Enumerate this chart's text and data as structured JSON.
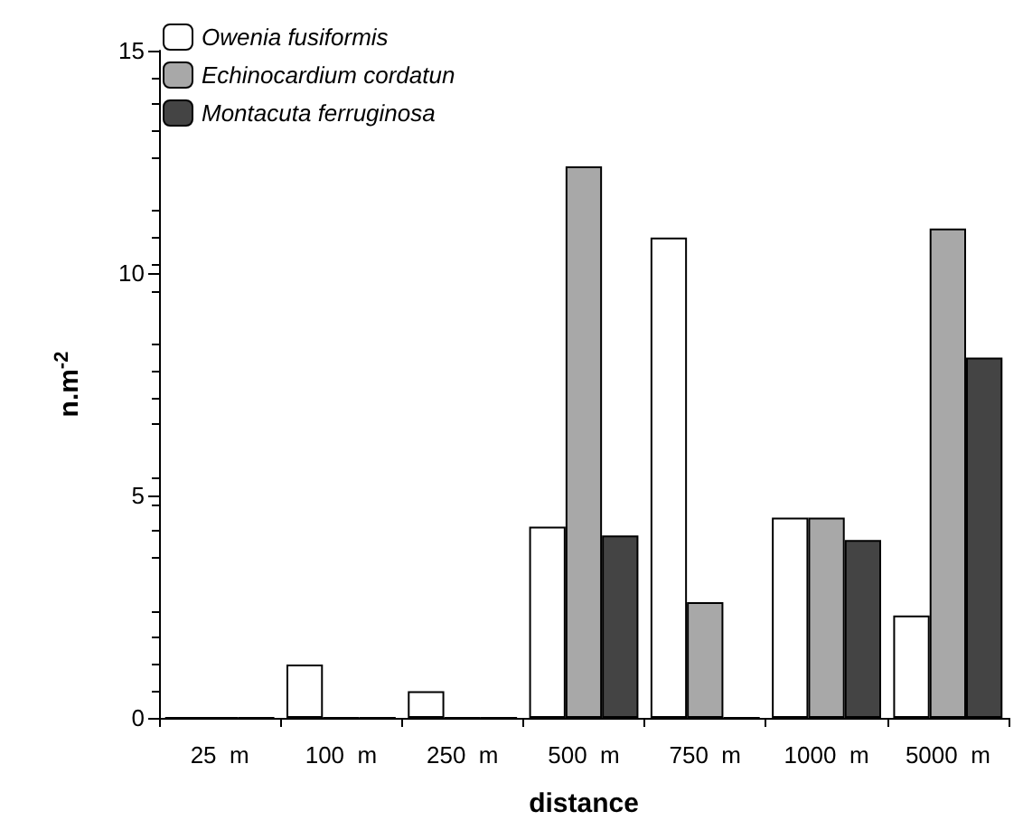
{
  "chart_data": {
    "type": "bar",
    "xlabel": "distance",
    "ylabel": "n.m$^{-2}$",
    "categories": [
      "25  m",
      "100  m",
      "250  m",
      "500  m",
      "750  m",
      "1000  m",
      "5000  m"
    ],
    "series": [
      {
        "name": "Owenia fusiformis",
        "color": "#ffffff",
        "values": [
          0,
          1.2,
          0.6,
          4.3,
          10.8,
          4.5,
          2.3
        ]
      },
      {
        "name": "Echinocardium cordatun",
        "color": "#a8a8a8",
        "values": [
          0,
          0,
          0,
          12.4,
          2.6,
          4.5,
          11.0
        ]
      },
      {
        "name": "Montacuta ferruginosa",
        "color": "#444444",
        "values": [
          0,
          0,
          0,
          4.1,
          0,
          4.0,
          8.1
        ]
      }
    ],
    "ylim": [
      0,
      15
    ],
    "yticks": [
      0,
      5,
      10,
      15
    ],
    "grid": false,
    "legend": "top left"
  }
}
